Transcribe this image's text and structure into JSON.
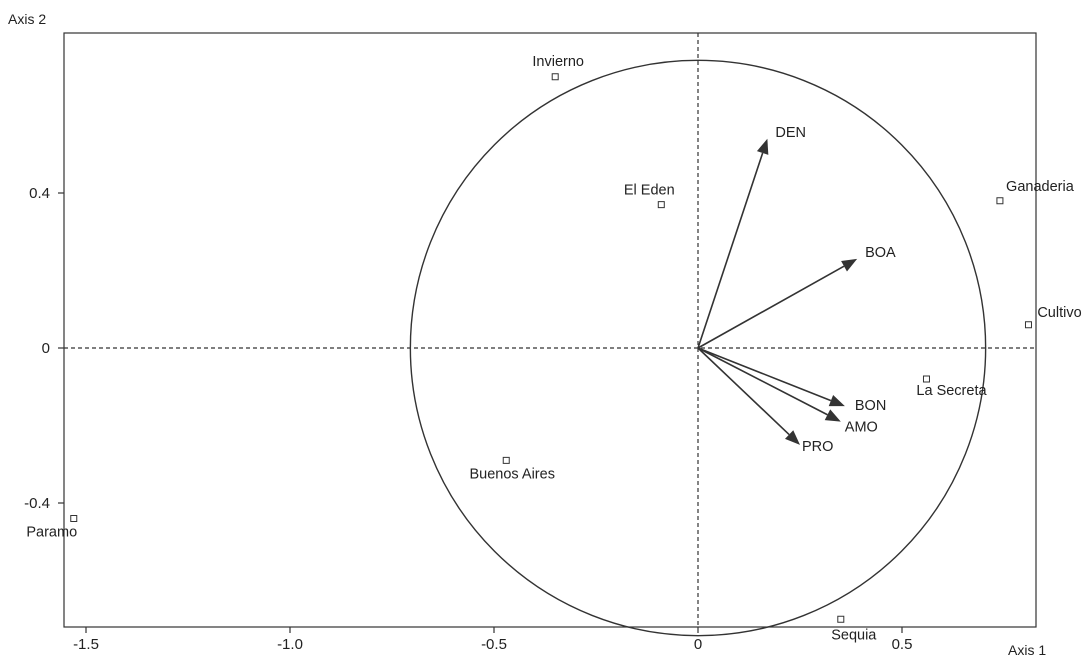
{
  "chart_data": {
    "type": "scatter",
    "subtype": "pca-biplot",
    "title": "",
    "xlabel": "Axis 1",
    "ylabel": "Axis 2",
    "xlim": [
      -1.53,
      0.83
    ],
    "ylim": [
      -0.73,
      0.84
    ],
    "xticks": [
      -1.5,
      -1.0,
      -0.5,
      0,
      0.5
    ],
    "xtick_labels": [
      "-1.5",
      "-1.0",
      "-0.5",
      "0",
      "0.5"
    ],
    "yticks": [
      -0.4,
      0,
      0.4
    ],
    "ytick_labels": [
      "-0.4",
      "0",
      "0.4"
    ],
    "grid": false,
    "zero_lines": "dashed",
    "correlation_circle_radius": 0.705,
    "points": [
      {
        "label": "Invierno",
        "x": -0.35,
        "y": 0.7
      },
      {
        "label": "El Eden",
        "x": -0.09,
        "y": 0.37
      },
      {
        "label": "Ganaderia",
        "x": 0.74,
        "y": 0.38
      },
      {
        "label": "Cultivo",
        "x": 0.81,
        "y": 0.06
      },
      {
        "label": "La Secreta",
        "x": 0.56,
        "y": -0.08
      },
      {
        "label": "Buenos Aires",
        "x": -0.47,
        "y": -0.29
      },
      {
        "label": "Paramo",
        "x": -1.53,
        "y": -0.44
      },
      {
        "label": "Sequia",
        "x": 0.35,
        "y": -0.7
      }
    ],
    "vectors": [
      {
        "label": "DEN",
        "x": 0.17,
        "y": 0.54
      },
      {
        "label": "BOA",
        "x": 0.39,
        "y": 0.23
      },
      {
        "label": "BON",
        "x": 0.36,
        "y": -0.15
      },
      {
        "label": "AMO",
        "x": 0.35,
        "y": -0.19
      },
      {
        "label": "PRO",
        "x": 0.25,
        "y": -0.25
      }
    ]
  }
}
